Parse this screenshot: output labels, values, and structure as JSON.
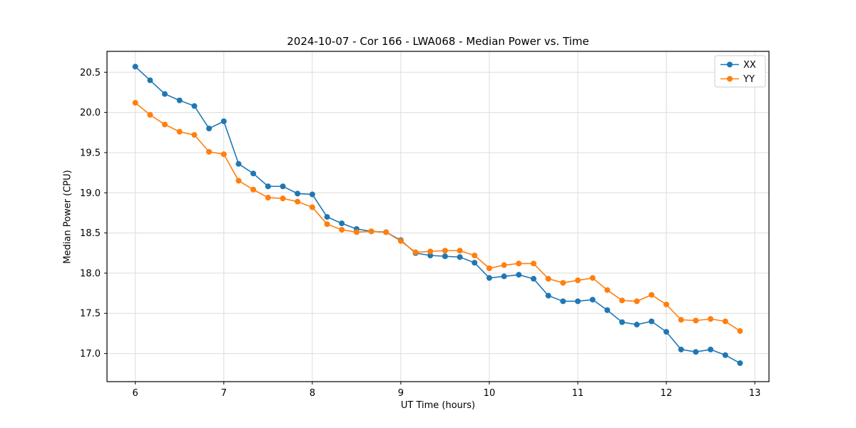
{
  "chart_data": {
    "type": "line",
    "title": "2024-10-07 - Cor 166 - LWA068 - Median Power vs. Time",
    "xlabel": "UT Time (hours)",
    "ylabel": "Median Power (CPU)",
    "xlim": [
      5.68,
      13.16
    ],
    "ylim": [
      16.65,
      20.76
    ],
    "xticks": [
      6,
      7,
      8,
      9,
      10,
      11,
      12,
      13
    ],
    "xtick_labels": [
      "6",
      "7",
      "8",
      "9",
      "10",
      "11",
      "12",
      "13"
    ],
    "yticks": [
      17.0,
      17.5,
      18.0,
      18.5,
      19.0,
      19.5,
      20.0,
      20.5
    ],
    "ytick_labels": [
      "17.0",
      "17.5",
      "18.0",
      "18.5",
      "19.0",
      "19.5",
      "20.0",
      "20.5"
    ],
    "grid": true,
    "grid_color": "#dcdcdc",
    "legend_position": "upper right",
    "x": [
      6.0,
      6.167,
      6.333,
      6.5,
      6.667,
      6.833,
      7.0,
      7.167,
      7.333,
      7.5,
      7.667,
      7.833,
      8.0,
      8.167,
      8.333,
      8.5,
      8.667,
      8.833,
      9.0,
      9.167,
      9.333,
      9.5,
      9.667,
      9.833,
      10.0,
      10.167,
      10.333,
      10.5,
      10.667,
      10.833,
      11.0,
      11.167,
      11.333,
      11.5,
      11.667,
      11.833,
      12.0,
      12.167,
      12.333,
      12.5,
      12.667,
      12.833
    ],
    "series": [
      {
        "name": "XX",
        "color": "#1f77b4",
        "values": [
          20.57,
          20.4,
          20.23,
          20.15,
          20.08,
          19.8,
          19.89,
          19.36,
          19.24,
          19.08,
          19.08,
          18.99,
          18.98,
          18.7,
          18.62,
          18.55,
          18.52,
          18.51,
          18.41,
          18.25,
          18.22,
          18.21,
          18.2,
          18.13,
          17.94,
          17.96,
          17.98,
          17.93,
          17.72,
          17.65,
          17.65,
          17.67,
          17.54,
          17.39,
          17.36,
          17.4,
          17.27,
          17.05,
          17.02,
          17.05,
          16.98,
          16.88
        ]
      },
      {
        "name": "YY",
        "color": "#ff7f0e",
        "values": [
          20.12,
          19.97,
          19.85,
          19.76,
          19.72,
          19.51,
          19.48,
          19.15,
          19.04,
          18.94,
          18.93,
          18.89,
          18.82,
          18.61,
          18.54,
          18.51,
          18.52,
          18.51,
          18.4,
          18.26,
          18.27,
          18.28,
          18.28,
          18.22,
          18.06,
          18.1,
          18.12,
          18.12,
          17.93,
          17.88,
          17.91,
          17.94,
          17.79,
          17.66,
          17.65,
          17.73,
          17.61,
          17.42,
          17.41,
          17.43,
          17.4,
          17.28
        ]
      }
    ]
  }
}
